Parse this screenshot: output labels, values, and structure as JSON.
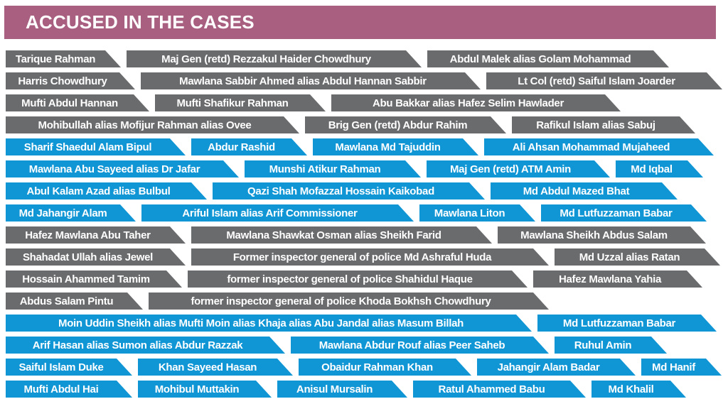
{
  "title": "ACCUSED IN THE CASES",
  "colors": {
    "header": "#a85f80",
    "gray": "#6a6b6d",
    "blue": "#1095d5",
    "banner_text": "#ffffff",
    "background": "#ffffff"
  },
  "rows": [
    {
      "color": "gray",
      "items": [
        "Tarique Rahman",
        "Maj Gen (retd) Rezzakul Haider Chowdhury",
        "Abdul Malek alias Golam Mohammad"
      ]
    },
    {
      "color": "gray",
      "items": [
        "Harris Chowdhury",
        "Mawlana Sabbir Ahmed alias Abdul Hannan Sabbir",
        "Lt Col (retd) Saiful Islam Joarder"
      ]
    },
    {
      "color": "gray",
      "items": [
        "Mufti Abdul Hannan",
        "Mufti Shafikur Rahman",
        "Abu Bakkar alias Hafez Selim Hawlader"
      ]
    },
    {
      "color": "gray",
      "items": [
        "Mohibullah alias Mofijur Rahman alias Ovee",
        "Brig Gen (retd) Abdur Rahim",
        "Rafikul Islam alias Sabuj"
      ]
    },
    {
      "color": "blue",
      "items": [
        "Sharif Shaedul Alam Bipul",
        "Abdur Rashid",
        "Mawlana Md Tajuddin",
        "Ali Ahsan Mohammad Mujaheed"
      ]
    },
    {
      "color": "blue",
      "items": [
        "Mawlana Abu Sayeed alias Dr Jafar",
        "Munshi Atikur Rahman",
        "Maj Gen (retd) ATM Amin",
        "Md Iqbal"
      ]
    },
    {
      "color": "blue",
      "items": [
        "Abul Kalam Azad alias Bulbul",
        "Qazi Shah Mofazzal Hossain Kaikobad",
        "Md Abdul Mazed Bhat"
      ]
    },
    {
      "color": "blue",
      "items": [
        "Md Jahangir Alam",
        "Ariful Islam alias Arif Commissioner",
        "Mawlana Liton",
        "Md Lutfuzzaman Babar"
      ]
    },
    {
      "color": "gray",
      "items": [
        "Hafez Mawlana Abu Taher",
        "Mawlana Shawkat Osman alias Sheikh Farid",
        "Mawlana Sheikh Abdus Salam"
      ]
    },
    {
      "color": "gray",
      "items": [
        "Shahadat Ullah alias Jewel",
        "Former inspector general of police Md Ashraful Huda",
        "Md Uzzal alias Ratan"
      ]
    },
    {
      "color": "gray",
      "items": [
        "Hossain Ahammed Tamim",
        "former inspector general of police Shahidul Haque",
        "Hafez Mawlana Yahia"
      ]
    },
    {
      "color": "gray",
      "items": [
        "Abdus Salam Pintu",
        "former inspector general of police Khoda Bokhsh Chowdhury"
      ]
    },
    {
      "color": "blue",
      "items": [
        "Moin Uddin Sheikh alias Mufti Moin alias Khaja alias Abu Jandal alias Masum Billah",
        "Md Lutfuzzaman Babar"
      ]
    },
    {
      "color": "blue",
      "items": [
        "Arif Hasan alias Sumon alias Abdur Razzak",
        "Mawlana Abdur Rouf alias Peer Saheb",
        "Ruhul Amin"
      ]
    },
    {
      "color": "blue",
      "items": [
        "Saiful Islam Duke",
        "Khan Sayeed Hasan",
        "Obaidur Rahman Khan",
        "Jahangir Alam Badar",
        "Md Hanif"
      ]
    },
    {
      "color": "blue",
      "items": [
        "Mufti Abdul Hai",
        "Mohibul Muttakin",
        "Anisul Mursalin",
        "Ratul Ahammed Babu",
        "Md Khalil"
      ]
    }
  ]
}
